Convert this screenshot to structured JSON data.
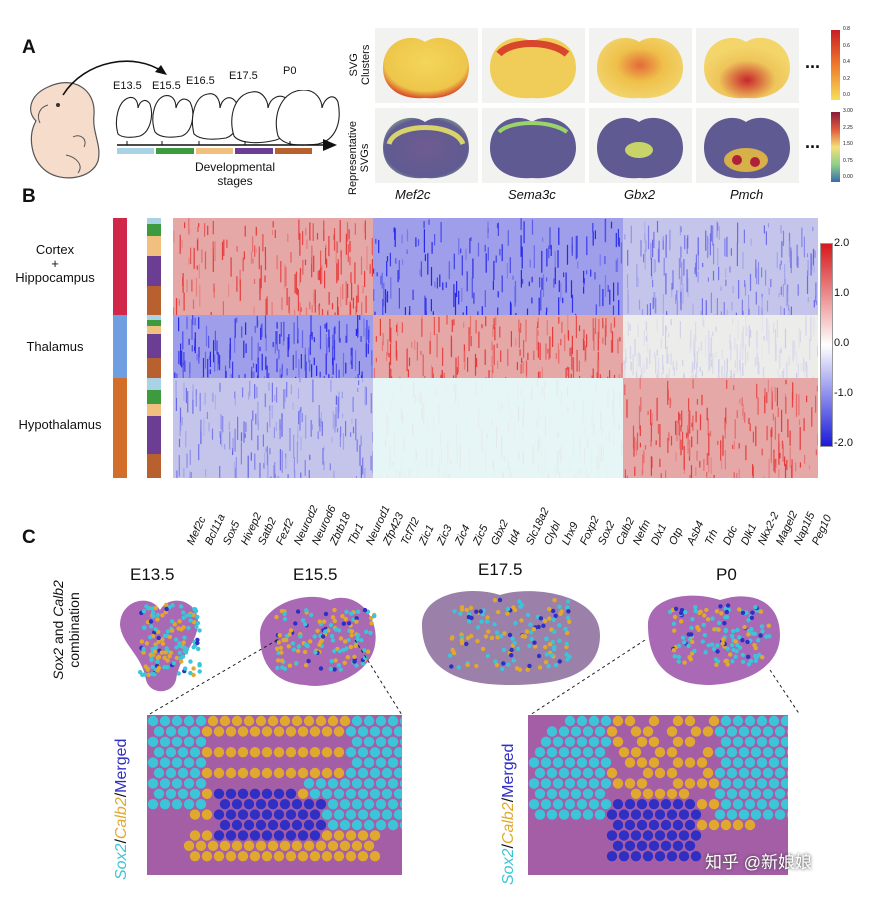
{
  "panelA": {
    "letter": "A",
    "stages": [
      "E13.5",
      "E15.5",
      "E16.5",
      "E17.5",
      "P0"
    ],
    "stage_colors": [
      "#a9d2e4",
      "#3e9a3e",
      "#f2c07e",
      "#6b3d93",
      "#b9612e"
    ],
    "axis_title_line1": "Developmental",
    "axis_title_line2": "stages",
    "row1_label_line1": "SVG",
    "row1_label_line2": "Clusters",
    "row2_label_line1": "Representative",
    "row2_label_line2": "SVGs",
    "genes": [
      "Mef2c",
      "Sema3c",
      "Gbx2",
      "Pmch"
    ],
    "ellipsis": "...",
    "cb1_ticks": [
      "0.8",
      "0.6",
      "0.4",
      "0.2",
      "0.0"
    ],
    "cb2_ticks": [
      "3.00",
      "2.25",
      "1.50",
      "0.75",
      "0.00"
    ]
  },
  "panelB": {
    "letter": "B",
    "regions": [
      {
        "name_line1": "Cortex",
        "name_line2": "+",
        "name_line3": "Hippocampus",
        "color": "#d0274a"
      },
      {
        "name_line1": "Thalamus",
        "color": "#6f9fe0"
      },
      {
        "name_line1": "Hypothalamus",
        "color": "#d26d2a"
      }
    ],
    "colorbar_ticks": [
      "2.0",
      "1.0",
      "0.0",
      "-1.0",
      "-2.0"
    ],
    "colorbar_colors": [
      "#d7191c",
      "#ffffff",
      "#1a1adb"
    ],
    "genes": [
      "Mef2c",
      "Bcl11a",
      "Sox5",
      "Hivep2",
      "Satb2",
      "Fezf2",
      "Neurod2",
      "Neurod6",
      "Zbtb18",
      "Tbr1",
      "Neurod1",
      "Zfp423",
      "Tcf7l2",
      "Zic1",
      "Zic3",
      "Zic4",
      "Zic5",
      "Gbx2",
      "Id4",
      "Slc18a2",
      "Clybl",
      "Lhx9",
      "Foxp2",
      "Sox2",
      "Calb2",
      "Nefm",
      "Dlx1",
      "Otp",
      "Asb4",
      "Trh",
      "Ddc",
      "Dlk1",
      "Nkx2-2",
      "Magel2",
      "Nap1l5",
      "Peg10"
    ]
  },
  "panelC": {
    "letter": "C",
    "side_title_g1": "Sox2",
    "side_title_and": " and ",
    "side_title_g2": "Calb2",
    "side_title_line2": "combination",
    "stages": [
      "E13.5",
      "E15.5",
      "E17.5",
      "P0"
    ],
    "legend_g1": "Sox2",
    "legend_slash1": "/",
    "legend_g2": "Calb2",
    "legend_slash2": "/",
    "legend_merged": "Merged",
    "colors": {
      "sox2": "#3cc4d8",
      "calb2": "#e0a92e",
      "merged": "#2f2fc4",
      "tissue": "#9a4fa8"
    },
    "watermark": "知乎 @新娘娘"
  }
}
